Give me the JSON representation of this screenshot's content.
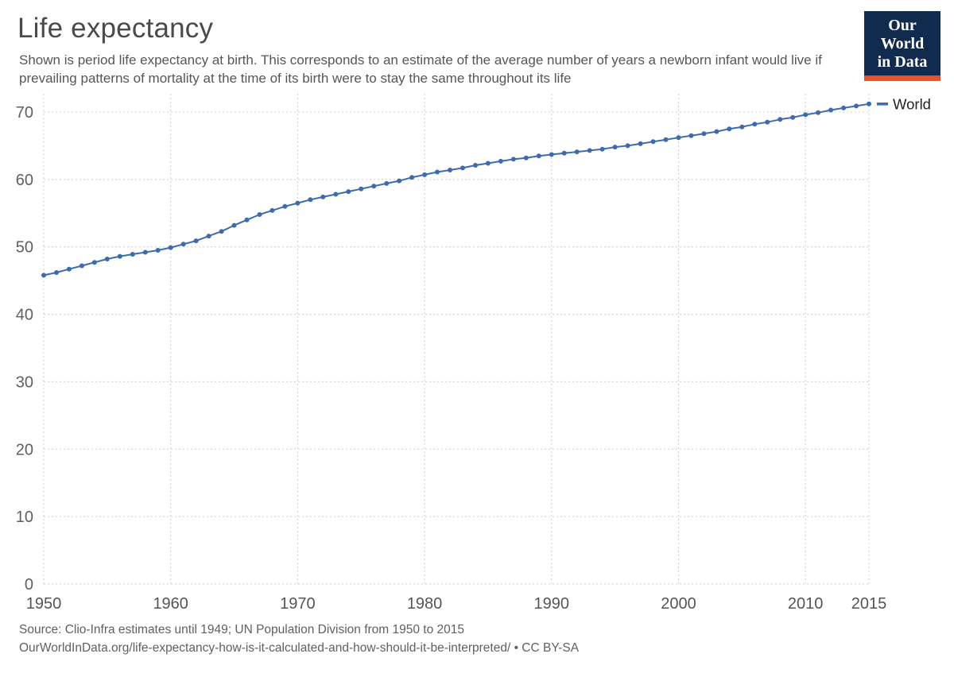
{
  "header": {
    "title": "Life expectancy",
    "subtitle": "Shown is period life expectancy at birth. This corresponds to an estimate of the average number of years a newborn infant would live if prevailing patterns of mortality at the time of its birth were to stay the same throughout its life",
    "logo": {
      "line1": "Our World",
      "line2": "in Data",
      "bg_color": "#112B4E",
      "accent_color": "#E8532C"
    }
  },
  "chart_data": {
    "type": "line",
    "title": "Life expectancy",
    "xlabel": "",
    "ylabel": "",
    "xlim": [
      1950,
      2015
    ],
    "ylim": [
      0,
      70
    ],
    "x_ticks": [
      1950,
      1960,
      1970,
      1980,
      1990,
      2000,
      2010,
      2015
    ],
    "y_ticks": [
      0,
      10,
      20,
      30,
      40,
      50,
      60,
      70
    ],
    "grid": "dashed",
    "legend_position": "right-end",
    "series": [
      {
        "name": "World",
        "color": "#3C6BB0",
        "x": [
          1950,
          1951,
          1952,
          1953,
          1954,
          1955,
          1956,
          1957,
          1958,
          1959,
          1960,
          1961,
          1962,
          1963,
          1964,
          1965,
          1966,
          1967,
          1968,
          1969,
          1970,
          1971,
          1972,
          1973,
          1974,
          1975,
          1976,
          1977,
          1978,
          1979,
          1980,
          1981,
          1982,
          1983,
          1984,
          1985,
          1986,
          1987,
          1988,
          1989,
          1990,
          1991,
          1992,
          1993,
          1994,
          1995,
          1996,
          1997,
          1998,
          1999,
          2000,
          2001,
          2002,
          2003,
          2004,
          2005,
          2006,
          2007,
          2008,
          2009,
          2010,
          2011,
          2012,
          2013,
          2014,
          2015
        ],
        "values": [
          45.8,
          46.2,
          46.7,
          47.2,
          47.7,
          48.2,
          48.6,
          48.9,
          49.2,
          49.5,
          49.9,
          50.4,
          50.9,
          51.6,
          52.3,
          53.2,
          54.0,
          54.8,
          55.4,
          56.0,
          56.5,
          57.0,
          57.4,
          57.8,
          58.2,
          58.6,
          59.0,
          59.4,
          59.8,
          60.3,
          60.7,
          61.1,
          61.4,
          61.7,
          62.1,
          62.4,
          62.7,
          63.0,
          63.2,
          63.5,
          63.7,
          63.9,
          64.1,
          64.3,
          64.5,
          64.8,
          65.0,
          65.3,
          65.6,
          65.9,
          66.2,
          66.5,
          66.8,
          67.1,
          67.5,
          67.8,
          68.2,
          68.5,
          68.9,
          69.2,
          69.6,
          69.9,
          70.3,
          70.6,
          70.9,
          71.2
        ]
      }
    ]
  },
  "footer": {
    "line1": "Source: Clio-Infra estimates until 1949; UN Population Division from 1950 to 2015",
    "line2": "OurWorldInData.org/life-expectancy-how-is-it-calculated-and-how-should-it-be-interpreted/ • CC BY-SA"
  }
}
